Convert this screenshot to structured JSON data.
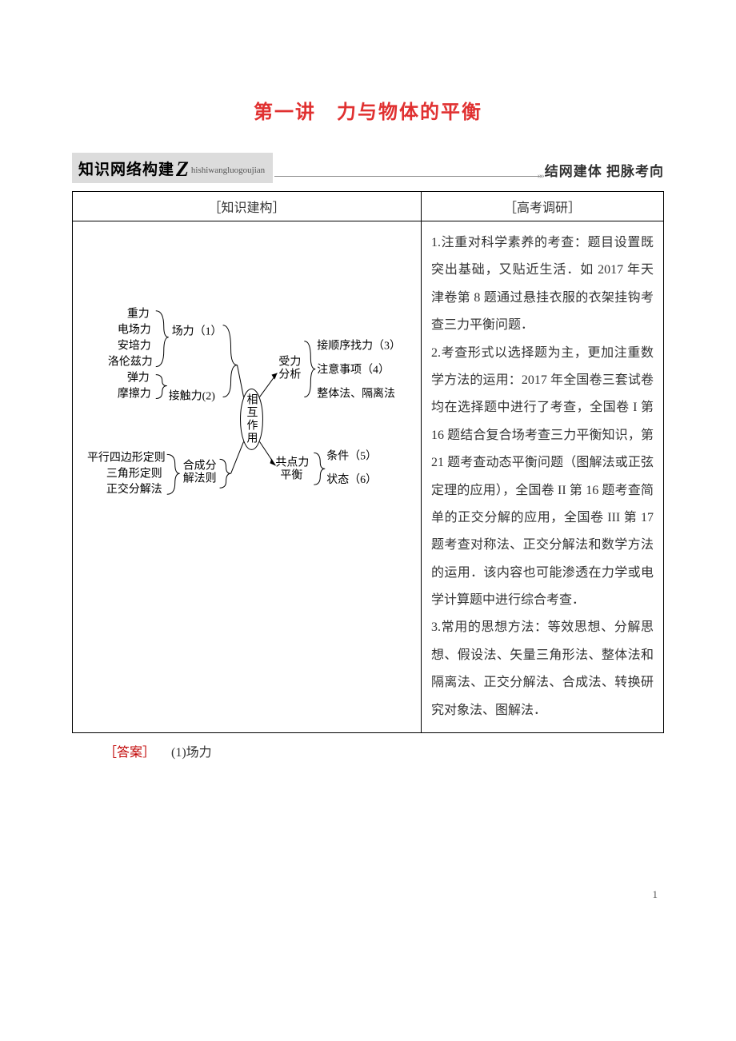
{
  "title": "第一讲　力与物体的平衡",
  "sectionHeader": {
    "badge": "知识网络构建",
    "bigLetter": "Z",
    "pinyin": "hishiwangluogoujian",
    "rightText": "结网建体  把脉考向",
    "arrow": "»»"
  },
  "table": {
    "leftHeader": "［知识建构］",
    "rightHeader": "［高考调研］"
  },
  "diagram": {
    "group1": {
      "items": [
        "重力",
        "电场力",
        "安培力",
        "洛伦兹力"
      ],
      "brace_label": "场力（1）"
    },
    "group2": {
      "items": [
        "弹力",
        "摩擦力"
      ],
      "brace_label": "接触力(2)"
    },
    "group3": {
      "items": [
        "平行四边形定则",
        "三角形定则",
        "正交分解法"
      ],
      "brace_label_left": "合成分\n解法则"
    },
    "middle_oval": "相互作用",
    "receive_block": {
      "title": "受力分析",
      "items": [
        "接顺序找力（3）",
        "注意事项（4）",
        "整体法、隔离法"
      ]
    },
    "balance_block": {
      "title": "共点力平衡",
      "items": [
        "条件（5）",
        "状态（6）"
      ]
    }
  },
  "rightText": "1.注重对科学素养的考查：题目设置既突出基础，又贴近生活．如 2017 年天津卷第 8 题通过悬挂衣服的衣架挂钩考查三力平衡问题．\n2.考查形式以选择题为主，更加注重数学方法的运用：2017 年全国卷三套试卷均在选择题中进行了考查，全国卷 I 第 16 题结合复合场考查三力平衡知识，第 21 题考查动态平衡问题（图解法或正弦定理的应用），全国卷 II 第 16 题考查简单的正交分解的应用，全国卷 III 第 17 题考查对称法、正交分解法和数学方法的运用．该内容也可能渗透在力学或电学计算题中进行综合考查．\n3.常用的思想方法：等效思想、分解思想、假设法、矢量三角形法、整体法和隔离法、正交分解法、合成法、转换研究对象法、图解法．",
  "answer": {
    "label": "［答案］",
    "text": "　(1)场力"
  },
  "pageNumber": "1",
  "colors": {
    "title": "#e03030",
    "badgeBg": "#dcdcdc",
    "answerLabel": "#c00000"
  }
}
